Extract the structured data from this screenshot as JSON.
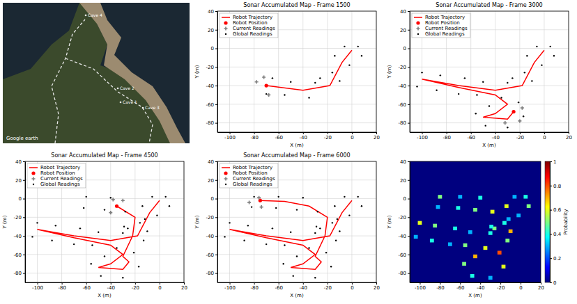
{
  "photo": {
    "labels": [
      "Cave 4",
      "Cave 2",
      "Cave 3",
      "Cave 1"
    ],
    "attribution": "Google earth"
  },
  "chart_data": [
    {
      "type": "scatter",
      "title": "Sonar Accumulated Map - Frame 1500",
      "xlabel": "X (m)",
      "ylabel": "Y (m)",
      "xlim": [
        -110,
        20
      ],
      "xticks": [
        -100,
        -80,
        -60,
        -40,
        -20,
        0,
        20
      ],
      "ylim": [
        -90,
        40
      ],
      "yticks": [
        -80,
        -60,
        -40,
        -20,
        0,
        20,
        40
      ],
      "grid": true,
      "legend": "top-left",
      "series": [
        {
          "name": "Robot Trajectory",
          "type": "line",
          "line_style": "solid",
          "color": "#ff0000",
          "x": [
            0,
            -8,
            -18,
            -40,
            -70
          ],
          "values": [
            -2,
            -15,
            -40,
            -45,
            -40
          ]
        },
        {
          "name": "Robot Position",
          "type": "scatter",
          "marker": "circle",
          "color": "#ff0000",
          "x": [
            -70
          ],
          "values": [
            -40
          ]
        },
        {
          "name": "Current Readings",
          "type": "scatter",
          "marker": "plus",
          "color": "#808080",
          "x": [
            -72,
            -68,
            -78
          ],
          "values": [
            -31,
            -50,
            -36
          ]
        },
        {
          "name": "Global Readings",
          "type": "scatter",
          "marker": "dot",
          "color": "#000000",
          "x": [
            5,
            -6,
            8,
            -14,
            -2,
            -16,
            -10,
            -26,
            -30,
            -35,
            -50,
            -55,
            -65,
            -70
          ],
          "values": [
            2,
            2,
            -8,
            -8,
            -18,
            -26,
            -35,
            -32,
            -37,
            -53,
            -36,
            -50,
            -32,
            -49
          ]
        }
      ]
    },
    {
      "type": "scatter",
      "title": "Sonar Accumulated Map - Frame 3000",
      "xlabel": "X (m)",
      "ylabel": "Y (m)",
      "xlim": [
        -110,
        20
      ],
      "xticks": [
        -100,
        -80,
        -60,
        -40,
        -20,
        0,
        20
      ],
      "ylim": [
        -90,
        40
      ],
      "yticks": [
        -80,
        -60,
        -40,
        -20,
        0,
        20,
        40
      ],
      "grid": true,
      "legend": "top-left",
      "series": [
        {
          "name": "Robot Trajectory",
          "type": "line",
          "line_style": "solid",
          "color": "#ff0000",
          "x": [
            0,
            -8,
            -18,
            -40,
            -70,
            -100,
            -70,
            -40,
            -30,
            -40,
            -50,
            -30,
            -25
          ],
          "values": [
            -2,
            -15,
            -40,
            -45,
            -40,
            -33,
            -42,
            -50,
            -60,
            -70,
            -74,
            -76,
            -68
          ]
        },
        {
          "name": "Robot Position",
          "type": "scatter",
          "marker": "circle",
          "color": "#ff0000",
          "x": [
            -25
          ],
          "values": [
            -68
          ]
        },
        {
          "name": "Current Readings",
          "type": "scatter",
          "marker": "plus",
          "color": "#808080",
          "x": [
            -18,
            -32,
            -20
          ],
          "values": [
            -64,
            -80,
            -78
          ]
        },
        {
          "name": "Global Readings",
          "type": "scatter",
          "marker": "dot",
          "color": "#000000",
          "x": [
            5,
            -6,
            8,
            -14,
            -2,
            -16,
            -10,
            -26,
            -30,
            -35,
            -50,
            -55,
            -65,
            -70,
            -85,
            -88,
            -100,
            -104,
            -45,
            -56,
            -48,
            -30,
            -17,
            -21
          ],
          "values": [
            2,
            2,
            -8,
            -8,
            -18,
            -26,
            -35,
            -32,
            -37,
            -53,
            -36,
            -50,
            -32,
            -49,
            -29,
            -45,
            -26,
            -41,
            -62,
            -70,
            -83,
            -85,
            -73,
            -58
          ]
        }
      ]
    },
    {
      "type": "scatter",
      "title": "Sonar Accumulated Map - Frame 4500",
      "xlabel": "X (m)",
      "ylabel": "Y (m)",
      "xlim": [
        -110,
        20
      ],
      "xticks": [
        -100,
        -80,
        -60,
        -40,
        -20,
        0,
        20
      ],
      "ylim": [
        -90,
        40
      ],
      "yticks": [
        -80,
        -60,
        -40,
        -20,
        0,
        20,
        40
      ],
      "grid": true,
      "legend": "top-left",
      "series": [
        {
          "name": "Robot Trajectory",
          "type": "line",
          "line_style": "solid",
          "color": "#ff0000",
          "x": [
            0,
            -8,
            -18,
            -40,
            -70,
            -100,
            -70,
            -40,
            -30,
            -40,
            -50,
            -30,
            -25,
            -30,
            -22,
            -20,
            -35
          ],
          "values": [
            -2,
            -15,
            -40,
            -45,
            -40,
            -33,
            -42,
            -50,
            -60,
            -70,
            -74,
            -76,
            -68,
            -62,
            -40,
            -20,
            -8
          ]
        },
        {
          "name": "Robot Position",
          "type": "scatter",
          "marker": "circle",
          "color": "#ff0000",
          "x": [
            -35
          ],
          "values": [
            -8
          ]
        },
        {
          "name": "Current Readings",
          "type": "scatter",
          "marker": "plus",
          "color": "#808080",
          "x": [
            -38,
            -40,
            -30
          ],
          "values": [
            -1,
            -15,
            -2
          ]
        },
        {
          "name": "Global Readings",
          "type": "scatter",
          "marker": "dot",
          "color": "#000000",
          "x": [
            5,
            -6,
            8,
            -14,
            -2,
            -16,
            -10,
            -26,
            -30,
            -35,
            -50,
            -55,
            -65,
            -70,
            -85,
            -88,
            -100,
            -104,
            -45,
            -56,
            -48,
            -30,
            -17,
            -21,
            -13,
            -29,
            -12,
            -28,
            -40,
            -45,
            -60,
            -62
          ],
          "values": [
            2,
            2,
            -8,
            -8,
            -18,
            -26,
            -35,
            -32,
            -37,
            -53,
            -36,
            -50,
            -32,
            -49,
            -29,
            -45,
            -26,
            -41,
            -62,
            -70,
            -83,
            -85,
            -73,
            -58,
            -45,
            -30,
            -22,
            -14,
            1,
            -12,
            2,
            -10
          ]
        }
      ]
    },
    {
      "type": "scatter",
      "title": "Sonar Accumulated Map - Frame 6000",
      "xlabel": "X (m)",
      "ylabel": "Y (m)",
      "xlim": [
        -110,
        20
      ],
      "xticks": [
        -100,
        -80,
        -60,
        -40,
        -20,
        0,
        20
      ],
      "ylim": [
        -90,
        40
      ],
      "yticks": [
        -80,
        -60,
        -40,
        -20,
        0,
        20,
        40
      ],
      "grid": true,
      "legend": "top-left",
      "series": [
        {
          "name": "Robot Trajectory",
          "type": "line",
          "line_style": "solid",
          "color": "#ff0000",
          "x": [
            0,
            -8,
            -18,
            -40,
            -70,
            -100,
            -70,
            -40,
            -30,
            -40,
            -50,
            -30,
            -25,
            -30,
            -22,
            -20,
            -35,
            -55,
            -75
          ],
          "values": [
            -2,
            -15,
            -40,
            -45,
            -40,
            -33,
            -42,
            -50,
            -60,
            -70,
            -74,
            -76,
            -68,
            -62,
            -40,
            -20,
            -8,
            -3,
            -2
          ]
        },
        {
          "name": "Robot Position",
          "type": "scatter",
          "marker": "circle",
          "color": "#ff0000",
          "x": [
            -75
          ],
          "values": [
            -2
          ]
        },
        {
          "name": "Current Readings",
          "type": "scatter",
          "marker": "plus",
          "color": "#808080",
          "x": [
            -76,
            -74,
            -84
          ],
          "values": [
            1,
            -9,
            -4
          ]
        },
        {
          "name": "Global Readings",
          "type": "scatter",
          "marker": "dot",
          "color": "#000000",
          "x": [
            5,
            -6,
            8,
            -14,
            -2,
            -16,
            -10,
            -26,
            -30,
            -35,
            -50,
            -55,
            -65,
            -70,
            -85,
            -88,
            -100,
            -104,
            -45,
            -56,
            -48,
            -30,
            -17,
            -21,
            -13,
            -29,
            -12,
            -28,
            -40,
            -45,
            -60,
            -62,
            -80,
            -82
          ],
          "values": [
            2,
            2,
            -8,
            -8,
            -18,
            -26,
            -35,
            -32,
            -37,
            -53,
            -36,
            -50,
            -32,
            -49,
            -29,
            -45,
            -26,
            -41,
            -62,
            -70,
            -83,
            -85,
            -73,
            -58,
            -45,
            -30,
            -22,
            -14,
            1,
            -12,
            2,
            -10,
            2,
            -9
          ]
        }
      ]
    },
    {
      "type": "heatmap",
      "xlabel": "X (m)",
      "ylabel": "Y (m)",
      "xlim": [
        -110,
        20
      ],
      "xticks": [
        -100,
        -80,
        -60,
        -40,
        -20,
        0,
        20
      ],
      "ylim": [
        -90,
        40
      ],
      "yticks": [
        -80,
        -60,
        -40,
        -20,
        0,
        20,
        40
      ],
      "bin_width": 4,
      "cells": {
        "x": [
          5,
          -6,
          8,
          -14,
          -2,
          -16,
          -10,
          -26,
          -30,
          -35,
          -50,
          -55,
          -65,
          -70,
          -85,
          -88,
          -100,
          -104,
          -45,
          -56,
          -48,
          -30,
          -17,
          -21,
          -13,
          -29,
          -12,
          -28,
          -40,
          -45,
          -60,
          -62,
          -80,
          -82
        ],
        "y": [
          2,
          2,
          -8,
          -8,
          -18,
          -26,
          -35,
          -32,
          -37,
          -53,
          -36,
          -50,
          -32,
          -49,
          -29,
          -45,
          -26,
          -41,
          -62,
          -70,
          -83,
          -85,
          -73,
          -58,
          -45,
          -30,
          -22,
          -14,
          1,
          -12,
          2,
          -10,
          2,
          -9
        ],
        "values": [
          0.4,
          0.3,
          0.5,
          0.6,
          0.3,
          0.4,
          0.7,
          0.5,
          0.4,
          0.6,
          0.3,
          0.5,
          0.4,
          0.3,
          0.5,
          0.4,
          0.6,
          0.3,
          0.7,
          0.5,
          0.4,
          0.3,
          0.6,
          0.8,
          0.5,
          0.4,
          0.3,
          0.6,
          0.4,
          0.5,
          0.3,
          0.4,
          0.5,
          0.3
        ]
      },
      "colorbar": {
        "label": "Probability",
        "lim": [
          0,
          1
        ],
        "ticks": [
          0,
          0.2,
          0.4,
          0.6,
          0.8,
          1
        ]
      }
    }
  ]
}
